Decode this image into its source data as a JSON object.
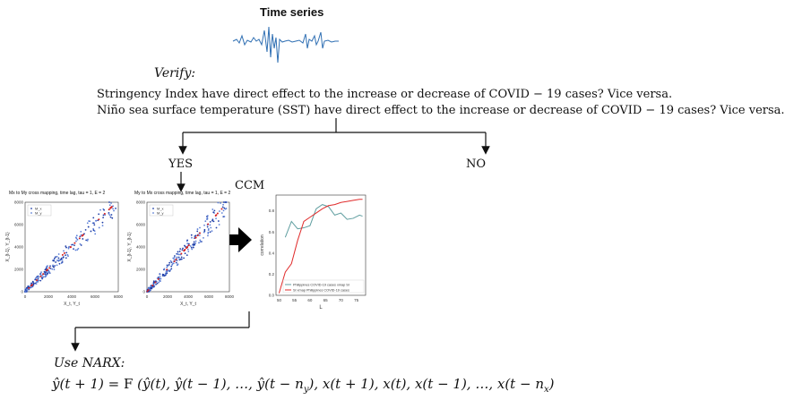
{
  "header": {
    "title": "Time series"
  },
  "verify": {
    "label": "Verify:",
    "questions": [
      "Stringency Index have direct effect to the increase or decrease of COVID − 19 cases? Vice versa.",
      "Niño sea surface temperature (SST) have direct effect to the increase or decrease of COVID − 19 cases? Vice versa."
    ]
  },
  "branches": {
    "yes": "YES",
    "no": "NO"
  },
  "ccm_label": "CCM",
  "scatter_plots": [
    {
      "title": "Mx to My cross mapping, time lag, tau = 1, E = 2",
      "xlabel": "X_t, Y_t",
      "ylabel": "X_{t-1}, Y_{t-1}",
      "legend": [
        "M_x",
        "M_y"
      ]
    },
    {
      "title": "My to Mx cross mapping, time lag, tau = 1, E = 2",
      "xlabel": "X_t, Y_t",
      "ylabel": "X_{t-1}, Y_{t-1}",
      "legend": [
        "M_x",
        "M_y"
      ]
    }
  ],
  "chart_data": [
    {
      "type": "scatter",
      "title": "Mx to My cross mapping, time lag, tau = 1, E = 2",
      "xlim": [
        0,
        8000
      ],
      "ylim": [
        0,
        8000
      ],
      "x_ticks": [
        "0",
        "2000",
        "4000",
        "6000",
        "8000"
      ],
      "y_ticks": [
        "0",
        "2000",
        "4000",
        "6000",
        "8000"
      ]
    },
    {
      "type": "scatter",
      "title": "My to Mx cross mapping, time lag, tau = 1, E = 2",
      "xlim": [
        0,
        8000
      ],
      "ylim": [
        0,
        8000
      ],
      "x_ticks": [
        "0",
        "2000",
        "4000",
        "6000",
        "8000"
      ],
      "y_ticks": [
        "0",
        "2000",
        "4000",
        "6000",
        "8000"
      ]
    },
    {
      "type": "line",
      "xlabel": "L",
      "ylabel": "correlation",
      "xlim": [
        49,
        78
      ],
      "ylim": [
        0,
        0.95
      ],
      "x_ticks": [
        50,
        55,
        60,
        65,
        70,
        75
      ],
      "y_ticks": [
        0.0,
        0.2,
        0.4,
        0.6,
        0.8
      ],
      "series": [
        {
          "name": "Philippines COVID-19 cases xmap SI",
          "color": "#5f9ea0",
          "x": [
            52,
            54,
            56,
            58,
            60,
            62,
            64,
            66,
            68,
            70,
            72,
            74,
            76,
            77
          ],
          "y": [
            0.55,
            0.7,
            0.63,
            0.64,
            0.66,
            0.82,
            0.86,
            0.84,
            0.76,
            0.78,
            0.72,
            0.73,
            0.76,
            0.75
          ]
        },
        {
          "name": "SI xmap Philippines COVID-19 cases",
          "color": "#e02b2b",
          "x": [
            50,
            52,
            54,
            56,
            58,
            60,
            62,
            64,
            66,
            68,
            70,
            72,
            74,
            76,
            77
          ],
          "y": [
            0.02,
            0.22,
            0.3,
            0.52,
            0.7,
            0.74,
            0.78,
            0.82,
            0.85,
            0.86,
            0.88,
            0.89,
            0.9,
            0.91,
            0.91
          ]
        }
      ],
      "legend": "bottom-right"
    }
  ],
  "narx": {
    "label": "Use NARX:",
    "equation": "ŷ(t + 1) = F (ŷ(t), ŷ(t − 1), …, ŷ(t − n_y), x(t + 1), x(t), x(t − 1), …, x(t − n_x)"
  }
}
